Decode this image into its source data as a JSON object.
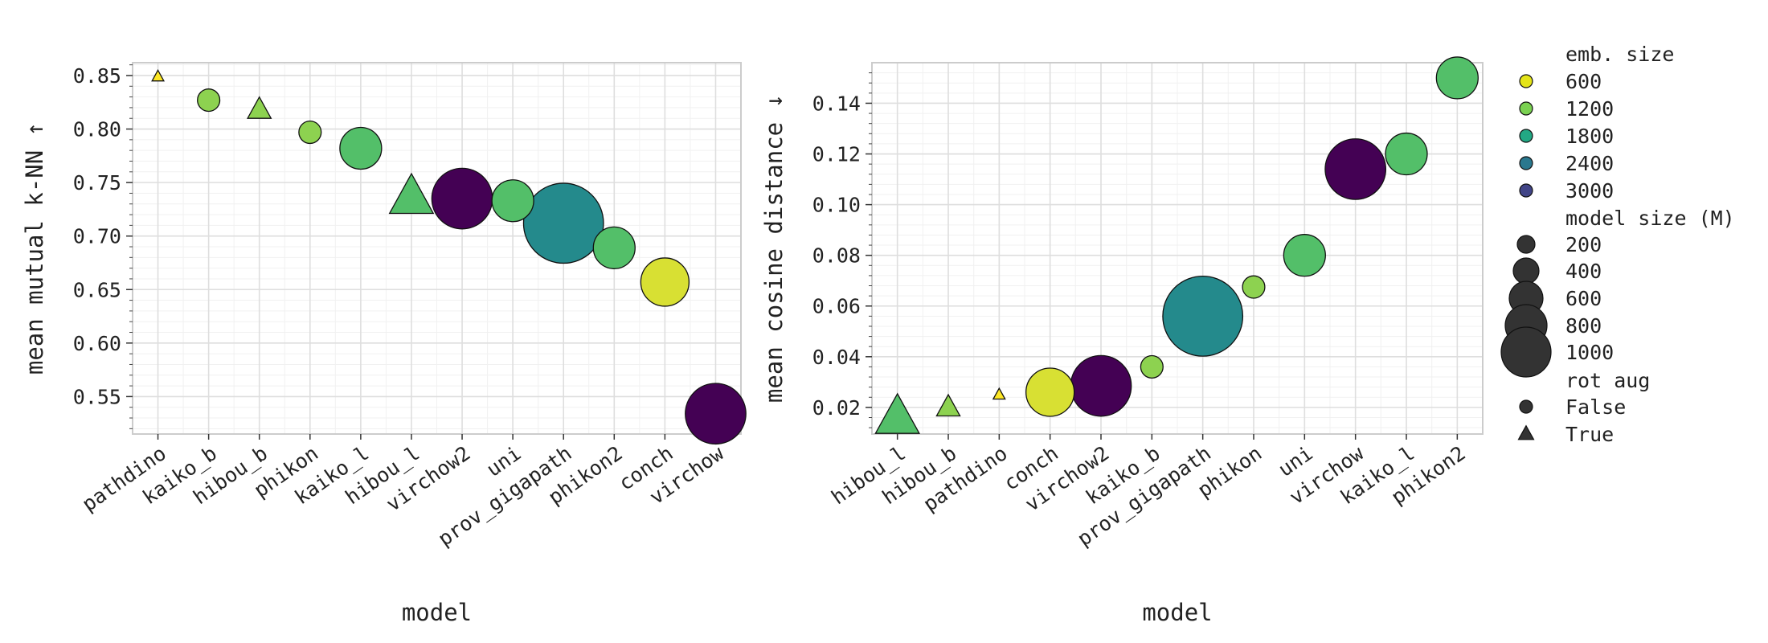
{
  "chart_data": [
    {
      "type": "scatter",
      "xlabel": "model",
      "ylabel": "mean mutual k-NN ↑",
      "ylim": [
        0.515,
        0.862
      ],
      "yticks": [
        "0.55",
        "0.60",
        "0.65",
        "0.70",
        "0.75",
        "0.80",
        "0.85"
      ],
      "grid": true,
      "points": [
        {
          "model": "pathdino",
          "value": 0.849,
          "emb_size": 384,
          "model_size": 22,
          "rot_aug": true
        },
        {
          "model": "kaiko_b",
          "value": 0.827,
          "emb_size": 768,
          "model_size": 86,
          "rot_aug": false
        },
        {
          "model": "hibou_b",
          "value": 0.818,
          "emb_size": 768,
          "model_size": 86,
          "rot_aug": true
        },
        {
          "model": "phikon",
          "value": 0.797,
          "emb_size": 768,
          "model_size": 86,
          "rot_aug": false
        },
        {
          "model": "kaiko_l",
          "value": 0.782,
          "emb_size": 1024,
          "model_size": 300,
          "rot_aug": false
        },
        {
          "model": "hibou_l",
          "value": 0.736,
          "emb_size": 1024,
          "model_size": 300,
          "rot_aug": true
        },
        {
          "model": "virchow2",
          "value": 0.735,
          "emb_size": 2560,
          "model_size": 632,
          "rot_aug": false
        },
        {
          "model": "uni",
          "value": 0.733,
          "emb_size": 1024,
          "model_size": 300,
          "rot_aug": false
        },
        {
          "model": "prov_gigapath",
          "value": 0.712,
          "emb_size": 1536,
          "model_size": 1100,
          "rot_aug": false
        },
        {
          "model": "phikon2",
          "value": 0.689,
          "emb_size": 1024,
          "model_size": 300,
          "rot_aug": false
        },
        {
          "model": "conch",
          "value": 0.657,
          "emb_size": 512,
          "model_size": 400,
          "rot_aug": false
        },
        {
          "model": "virchow",
          "value": 0.534,
          "emb_size": 2560,
          "model_size": 632,
          "rot_aug": false
        }
      ]
    },
    {
      "type": "scatter",
      "xlabel": "model",
      "ylabel": "mean cosine distance ↓",
      "ylim": [
        0.0095,
        0.156
      ],
      "yticks": [
        "0.02",
        "0.04",
        "0.06",
        "0.08",
        "0.10",
        "0.12",
        "0.14"
      ],
      "grid": true,
      "points": [
        {
          "model": "hibou_l",
          "value": 0.016,
          "emb_size": 1024,
          "model_size": 300,
          "rot_aug": true
        },
        {
          "model": "hibou_b",
          "value": 0.02,
          "emb_size": 768,
          "model_size": 86,
          "rot_aug": true
        },
        {
          "model": "pathdino",
          "value": 0.025,
          "emb_size": 384,
          "model_size": 22,
          "rot_aug": true
        },
        {
          "model": "conch",
          "value": 0.026,
          "emb_size": 512,
          "model_size": 400,
          "rot_aug": false
        },
        {
          "model": "virchow2",
          "value": 0.0285,
          "emb_size": 2560,
          "model_size": 632,
          "rot_aug": false
        },
        {
          "model": "kaiko_b",
          "value": 0.036,
          "emb_size": 768,
          "model_size": 86,
          "rot_aug": false
        },
        {
          "model": "prov_gigapath",
          "value": 0.056,
          "emb_size": 1536,
          "model_size": 1100,
          "rot_aug": false
        },
        {
          "model": "phikon",
          "value": 0.0675,
          "emb_size": 768,
          "model_size": 86,
          "rot_aug": false
        },
        {
          "model": "uni",
          "value": 0.08,
          "emb_size": 1024,
          "model_size": 300,
          "rot_aug": false
        },
        {
          "model": "virchow",
          "value": 0.114,
          "emb_size": 2560,
          "model_size": 632,
          "rot_aug": false
        },
        {
          "model": "kaiko_l",
          "value": 0.12,
          "emb_size": 1024,
          "model_size": 300,
          "rot_aug": false
        },
        {
          "model": "phikon2",
          "value": 0.15,
          "emb_size": 1024,
          "model_size": 300,
          "rot_aug": false
        }
      ]
    }
  ],
  "legend": {
    "placement": "right",
    "emb_size": {
      "title": "emb. size",
      "items": [
        {
          "label": "600",
          "color": "#e4e419"
        },
        {
          "label": "1200",
          "color": "#7ad151"
        },
        {
          "label": "1800",
          "color": "#22a884"
        },
        {
          "label": "2400",
          "color": "#2a788e"
        },
        {
          "label": "3000",
          "color": "#414487"
        }
      ]
    },
    "model_size": {
      "title": "model size (M)",
      "items": [
        {
          "label": "200",
          "value": 200
        },
        {
          "label": "400",
          "value": 400
        },
        {
          "label": "600",
          "value": 600
        },
        {
          "label": "800",
          "value": 800
        },
        {
          "label": "1000",
          "value": 1000
        }
      ]
    },
    "rot_aug": {
      "title": "rot aug",
      "items": [
        {
          "label": "False",
          "shape": "circle-icon"
        },
        {
          "label": "True",
          "shape": "triangle-icon"
        }
      ]
    }
  },
  "colors": {
    "panel_border": "#cccccc",
    "grid_major": "#dedede",
    "grid_minor": "#f1f1f1",
    "marker_stroke": "#111111",
    "legend_size_fill": "#333333",
    "viridis_stops": [
      "#440154",
      "#3b528b",
      "#21918c",
      "#5ec962",
      "#fde725"
    ]
  }
}
